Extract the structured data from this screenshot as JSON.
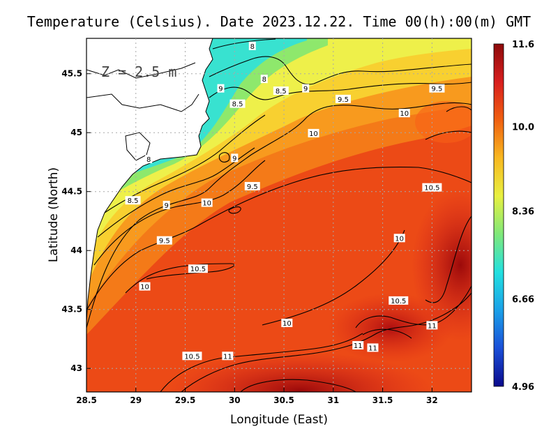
{
  "chart_data": {
    "type": "heatmap",
    "title": "Temperature (Celsius). Date 2023.12.22. Time 00(h):00(m) GMT",
    "xlabel": "Longitude (East)",
    "ylabel": "Latitude (North)",
    "annotation": "Z = 2.5 m",
    "xlim": [
      28.5,
      32.4
    ],
    "ylim": [
      42.8,
      45.8
    ],
    "x_ticks": [
      "28.5",
      "29",
      "29.5",
      "30",
      "30.5",
      "31",
      "31.5",
      "32"
    ],
    "y_ticks": [
      "43",
      "43.5",
      "44",
      "44.5",
      "45",
      "45.5"
    ],
    "grid": true,
    "colorbar": {
      "min": 4.96,
      "max": 11.6,
      "tick_labels": [
        "11.6",
        "10.0",
        "8.36",
        "6.66",
        "4.96"
      ],
      "colors": [
        "#0a0a8c",
        "#1a4fd8",
        "#1aa0e8",
        "#22e0e0",
        "#7fe87a",
        "#e8f040",
        "#f8b820",
        "#f06010",
        "#d81e1e",
        "#8c0a0a"
      ]
    },
    "contour_labels": [
      {
        "text": "8",
        "lon": 30.18,
        "lat": 45.73
      },
      {
        "text": "8",
        "lon": 30.3,
        "lat": 45.45
      },
      {
        "text": "8.5",
        "lon": 30.47,
        "lat": 45.35
      },
      {
        "text": "9",
        "lon": 30.72,
        "lat": 45.37
      },
      {
        "text": "9",
        "lon": 29.86,
        "lat": 45.37
      },
      {
        "text": "8.5",
        "lon": 30.03,
        "lat": 45.24
      },
      {
        "text": "9.5",
        "lon": 31.1,
        "lat": 45.28
      },
      {
        "text": "9.5",
        "lon": 32.05,
        "lat": 45.37
      },
      {
        "text": "10",
        "lon": 31.72,
        "lat": 45.16
      },
      {
        "text": "10",
        "lon": 30.8,
        "lat": 44.99
      },
      {
        "text": "8",
        "lon": 29.13,
        "lat": 44.77
      },
      {
        "text": "9",
        "lon": 30.0,
        "lat": 44.78
      },
      {
        "text": "9.5",
        "lon": 30.18,
        "lat": 44.54
      },
      {
        "text": "10.5",
        "lon": 32.0,
        "lat": 44.53
      },
      {
        "text": "8.5",
        "lon": 28.97,
        "lat": 44.42
      },
      {
        "text": "9",
        "lon": 29.31,
        "lat": 44.38
      },
      {
        "text": "10",
        "lon": 29.72,
        "lat": 44.4
      },
      {
        "text": "9.5",
        "lon": 29.29,
        "lat": 44.08
      },
      {
        "text": "10",
        "lon": 31.67,
        "lat": 44.1
      },
      {
        "text": "10.5",
        "lon": 29.63,
        "lat": 43.84
      },
      {
        "text": "10",
        "lon": 29.09,
        "lat": 43.69
      },
      {
        "text": "10.5",
        "lon": 31.66,
        "lat": 43.57
      },
      {
        "text": "10",
        "lon": 30.53,
        "lat": 43.38
      },
      {
        "text": "11",
        "lon": 32.0,
        "lat": 43.36
      },
      {
        "text": "11",
        "lon": 31.25,
        "lat": 43.19
      },
      {
        "text": "11",
        "lon": 31.4,
        "lat": 43.17
      },
      {
        "text": "10.5",
        "lon": 29.57,
        "lat": 43.1
      },
      {
        "text": "11",
        "lon": 29.93,
        "lat": 43.1
      }
    ]
  }
}
